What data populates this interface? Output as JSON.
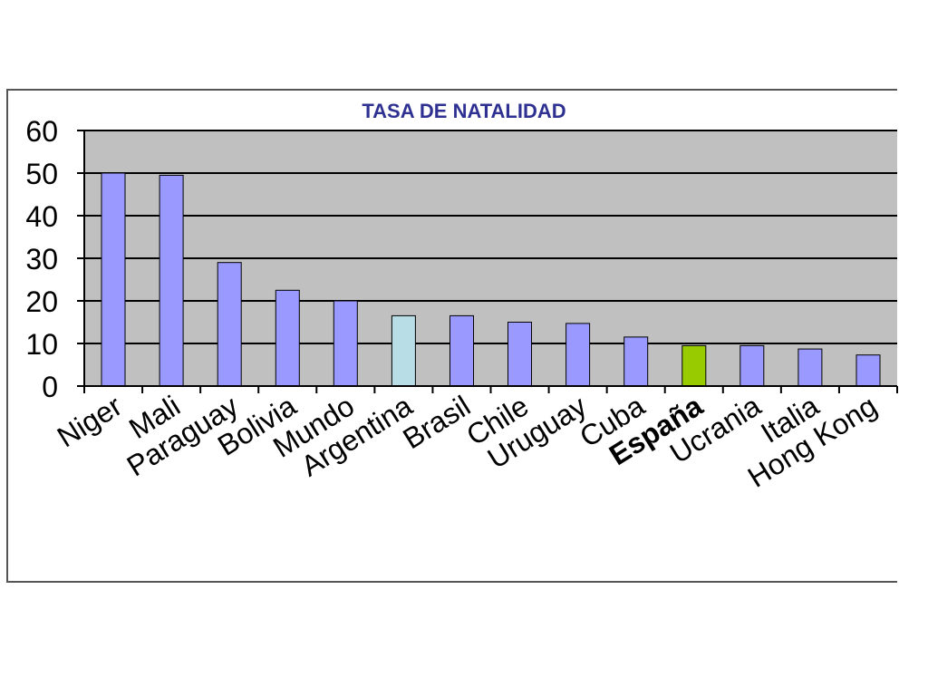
{
  "chart_data": {
    "type": "bar",
    "title": "TASA DE NATALIDAD",
    "xlabel": "",
    "ylabel": "",
    "ylim": [
      0,
      60
    ],
    "yticks": [
      0,
      10,
      20,
      30,
      40,
      50,
      60
    ],
    "grid": true,
    "categories": [
      "Niger",
      "Mali",
      "Paraguay",
      "Bolivia",
      "Mundo",
      "Argentina",
      "Brasil",
      "Chile",
      "Uruguay",
      "Cuba",
      "España",
      "Ucrania",
      "Italia",
      "Hong Kong"
    ],
    "values": [
      50,
      49.5,
      29,
      22.5,
      20,
      16.5,
      16.5,
      15,
      14.7,
      11.5,
      9.5,
      9.5,
      8.7,
      7.3
    ],
    "bar_colors": [
      "#9999ff",
      "#9999ff",
      "#9999ff",
      "#9999ff",
      "#9999ff",
      "#b8dde6",
      "#9999ff",
      "#9999ff",
      "#9999ff",
      "#9999ff",
      "#99cc00",
      "#9999ff",
      "#9999ff",
      "#9999ff"
    ],
    "bold_categories": [
      "España"
    ],
    "colors": {
      "plot_background": "#c0c0c0",
      "default_bar": "#9999ff",
      "highlight_argentina": "#b8dde6",
      "highlight_espana": "#99cc00",
      "title": "#2e3192"
    }
  }
}
